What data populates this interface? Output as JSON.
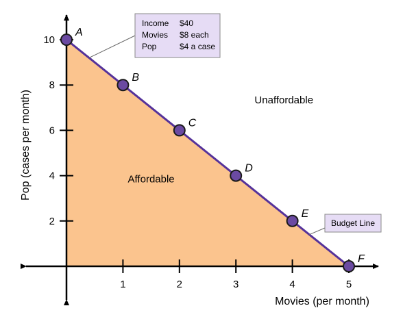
{
  "chart_data": {
    "type": "line",
    "xlabel": "Movies (per month)",
    "ylabel": "Pop (cases per month)",
    "xlim": [
      0,
      5
    ],
    "ylim": [
      0,
      10
    ],
    "x_ticks": [
      1,
      2,
      3,
      4,
      5
    ],
    "y_ticks": [
      2,
      4,
      6,
      8,
      10
    ],
    "grid": false,
    "points": [
      {
        "label": "A",
        "x": 0,
        "y": 10
      },
      {
        "label": "B",
        "x": 1,
        "y": 8
      },
      {
        "label": "C",
        "x": 2,
        "y": 6
      },
      {
        "label": "D",
        "x": 3,
        "y": 4
      },
      {
        "label": "E",
        "x": 4,
        "y": 2
      },
      {
        "label": "F",
        "x": 5,
        "y": 0
      }
    ],
    "regions": [
      {
        "label": "Affordable",
        "x": 1.5,
        "y": 4
      },
      {
        "label": "Unaffordable",
        "x": 3.85,
        "y": 7.5
      }
    ],
    "annotations": {
      "info_box": {
        "rows": [
          {
            "item": "Income",
            "value": "$40"
          },
          {
            "item": "Movies",
            "value": "$8 each"
          },
          {
            "item": "Pop",
            "value": "$4 a case"
          }
        ],
        "points_to": {
          "x": 0.4,
          "y": 9.2
        }
      },
      "budget_line_box": {
        "text": "Budget Line",
        "points_to": {
          "x": 4.3,
          "y": 1.4
        }
      }
    },
    "colors": {
      "fill": "#fbc48e",
      "line": "#55329a",
      "marker": "#6b4aa2",
      "callout_bg": "#e6dcf5"
    }
  }
}
